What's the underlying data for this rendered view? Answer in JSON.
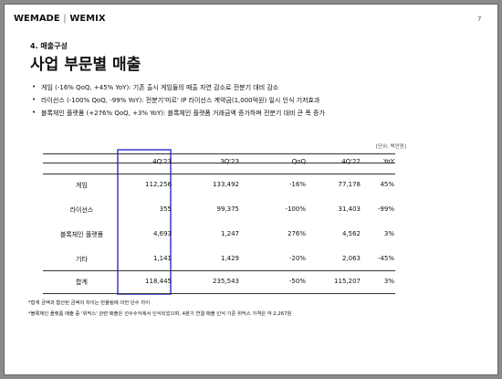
{
  "header": {
    "logo_left": "WEMADE",
    "logo_right": "WEMIX",
    "page_number": "7"
  },
  "section": "4. 매출구성",
  "title": "사업 부문별 매출",
  "bullets": [
    "게임 (-16% QoQ, +45% YoY): 기존 출시 게임들의 매출 자연 감소로 전분기 대비 감소",
    "라이선스 (-100% QoQ, -99% YoY): 전분기'미르' IP 라이선스 계약금(1,000억원) 일시 인식 기저효과",
    "블록체인 플랫폼 (+276% QoQ, +3% YoY): 블록체인 플랫폼 거래금액 증가하며 전분기 대비 큰 폭 증가"
  ],
  "unit": "[단위: 백만원]",
  "table": {
    "columns": [
      "4Q'23",
      "3Q'23",
      "QoQ",
      "4Q'22",
      "YoY"
    ],
    "rows": [
      [
        "게임",
        "112,256",
        "133,492",
        "-16%",
        "77,178",
        "45%"
      ],
      [
        "라이선스",
        "355",
        "99,375",
        "-100%",
        "31,403",
        "-99%"
      ],
      [
        "블록체인 플랫폼",
        "4,693",
        "1,247",
        "276%",
        "4,562",
        "3%"
      ],
      [
        "기타",
        "1,141",
        "1,429",
        "-20%",
        "2,063",
        "-45%"
      ]
    ],
    "total": [
      "합계",
      "118,445",
      "235,543",
      "-50%",
      "115,207",
      "3%"
    ]
  },
  "footnotes": [
    "*합계 금액과 합산된 금액의 차이는 반올림에 의한 단수 차이",
    "*블록체인 플랫폼 매출 중 '위믹스' 관련 매출은 선수수익에서 인식되었으며, 4분기 연결 매출 인식 기준 위믹스 가격은 약 2,267원"
  ]
}
